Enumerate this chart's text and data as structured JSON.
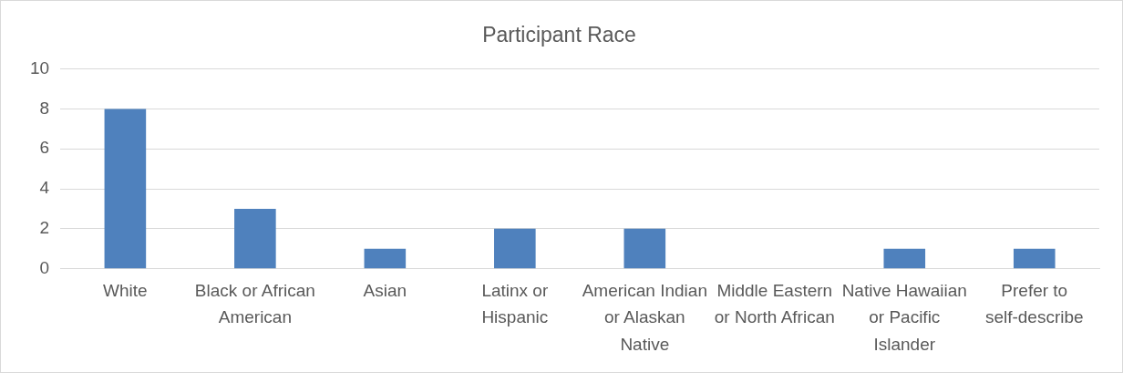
{
  "chart_data": {
    "type": "bar",
    "title": "Participant Race",
    "categories": [
      "White",
      "Black or African American",
      "Asian",
      "Latinx or Hispanic",
      "American Indian or Alaskan Native",
      "Middle Eastern or North African",
      "Native Hawaiian or Pacific Islander",
      "Prefer to self-describe"
    ],
    "values": [
      8,
      3,
      1,
      2,
      2,
      0,
      1,
      1
    ],
    "color": "#4f81bd",
    "ylim": [
      0,
      10
    ],
    "yticks": [
      0,
      2,
      4,
      6,
      8,
      10
    ],
    "grid": "y",
    "legend": false
  }
}
